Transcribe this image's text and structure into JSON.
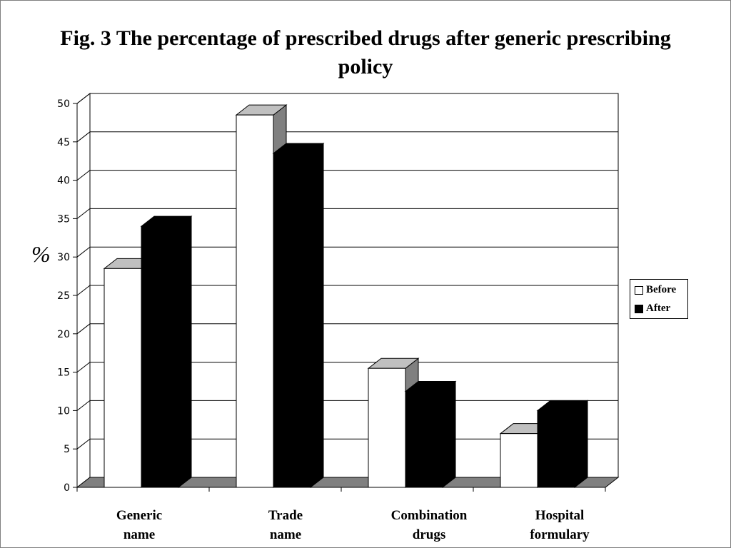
{
  "chart_data": {
    "type": "bar",
    "title": "Fig. 3 The percentage of prescribed drugs after generic prescribing policy",
    "ylabel": "%",
    "categories": [
      "Generic name",
      "Trade name",
      "Combination drugs",
      "Hospital formulary"
    ],
    "category_lines": [
      [
        "Generic",
        "name"
      ],
      [
        "Trade",
        "name"
      ],
      [
        "Combination",
        "drugs"
      ],
      [
        "Hospital",
        "formulary"
      ]
    ],
    "series": [
      {
        "name": "Before",
        "values": [
          28.5,
          48.5,
          15.5,
          7.0
        ],
        "color": "#ffffff"
      },
      {
        "name": "After",
        "values": [
          34.0,
          43.5,
          12.5,
          10.0
        ],
        "color": "#000000"
      }
    ],
    "ylim": [
      0,
      50
    ],
    "yticks": [
      "0",
      "5",
      "10",
      "15",
      "20",
      "25",
      "30",
      "35",
      "40",
      "45",
      "50"
    ],
    "grid": true,
    "legend_position": "right",
    "style": "3d"
  }
}
